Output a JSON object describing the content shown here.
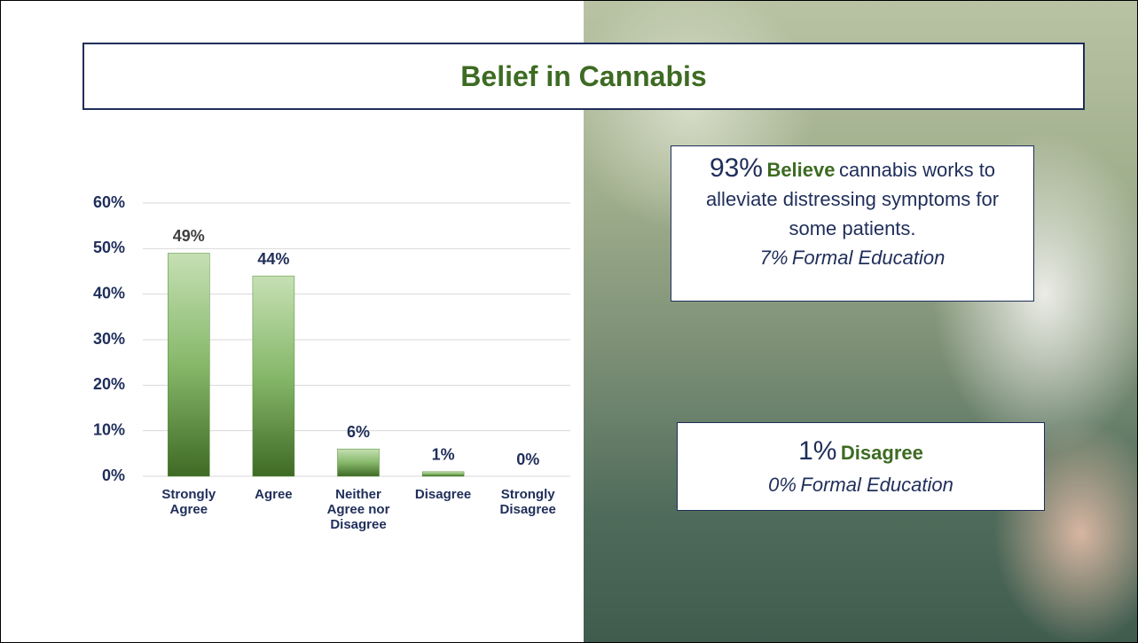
{
  "chart_data": {
    "type": "bar",
    "title": "Belief in Cannabis",
    "categories": [
      "Strongly Agree",
      "Agree",
      "Neither Agree nor Disagree",
      "Disagree",
      "Strongly Disagree"
    ],
    "values": [
      49,
      44,
      6,
      1,
      0
    ],
    "value_labels": [
      "49%",
      "44%",
      "6%",
      "1%",
      "0%"
    ],
    "color": "#4f8a2f",
    "ylim": [
      0,
      60
    ],
    "yticks": [
      {
        "value": 0,
        "label": "0%"
      },
      {
        "value": 10,
        "label": "10%"
      },
      {
        "value": 20,
        "label": "20%"
      },
      {
        "value": 30,
        "label": "30%"
      },
      {
        "value": 40,
        "label": "40%"
      },
      {
        "value": 50,
        "label": "50%"
      },
      {
        "value": 60,
        "label": "60%"
      }
    ],
    "grid": true
  },
  "annotations": [
    {
      "stat": "93%",
      "keyword": "Believe",
      "text": "cannabis works to alleviate distressing symptoms for some patients.",
      "sub_stat": "7%",
      "sub_text": "Formal Education"
    },
    {
      "stat": "1%",
      "keyword": "Disagree",
      "sub_stat": "0%",
      "sub_text": "Formal Education"
    }
  ]
}
